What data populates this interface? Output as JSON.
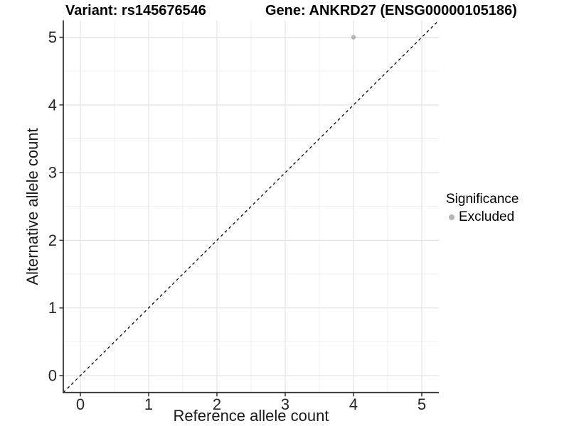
{
  "title": {
    "left": "Variant: rs145676546",
    "right": "Gene: ANKRD27 (ENSG00000105186)"
  },
  "chart_data": {
    "type": "scatter",
    "title_left": "Variant: rs145676546",
    "title_right": "Gene: ANKRD27 (ENSG00000105186)",
    "xlabel": "Reference allele count",
    "ylabel": "Alternative allele count",
    "xlim": [
      -0.25,
      5.25
    ],
    "ylim": [
      -0.25,
      5.25
    ],
    "xticks": [
      0,
      1,
      2,
      3,
      4,
      5
    ],
    "yticks": [
      0,
      1,
      2,
      3,
      4,
      5
    ],
    "minor_gridlines_at_half_steps": true,
    "grid": true,
    "reference_line": {
      "type": "identity",
      "equation": "y = x",
      "style": "dashed",
      "color": "#000000"
    },
    "series": [
      {
        "name": "Excluded",
        "color": "#b5b5b5",
        "points": [
          {
            "x": 4,
            "y": 5
          }
        ]
      }
    ],
    "legend": {
      "title": "Significance",
      "position": "right",
      "entries": [
        {
          "label": "Excluded",
          "color": "#b5b5b5"
        }
      ]
    },
    "colors": {
      "background": "#ffffff",
      "grid_major": "#e3e3e3",
      "grid_minor": "#efefef",
      "axis_line": "#333333",
      "tick_text": "#262626",
      "point": "#b5b5b5",
      "reference_line": "#000000"
    }
  }
}
